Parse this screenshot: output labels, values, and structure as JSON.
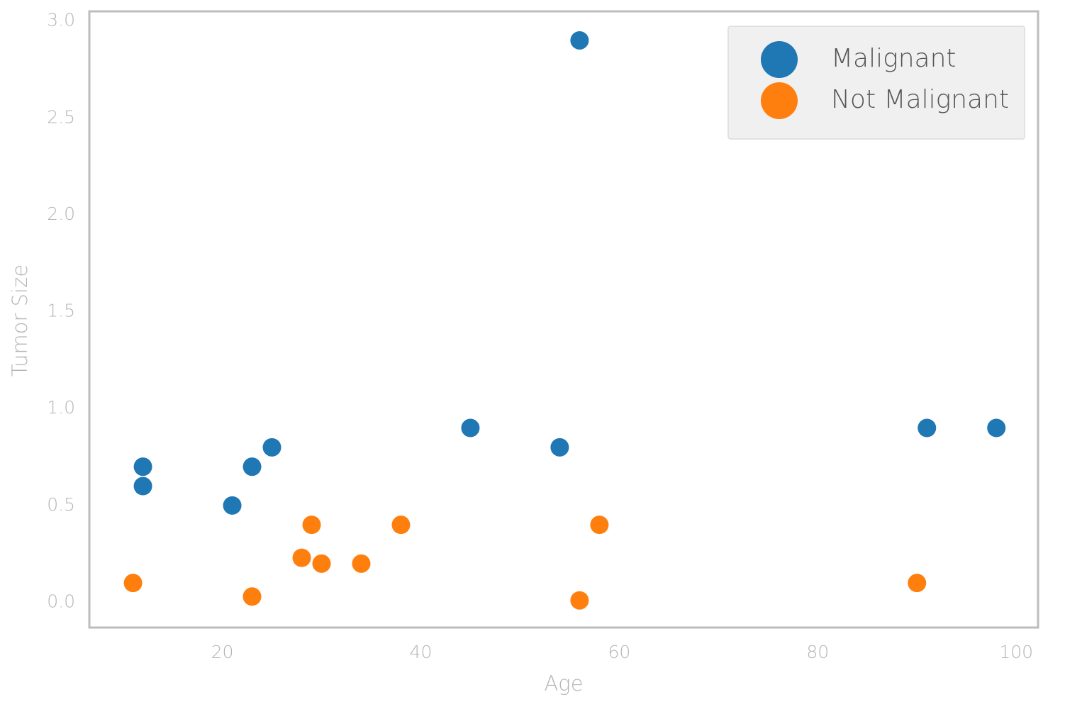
{
  "chart_data": {
    "type": "scatter",
    "xlabel": "Age",
    "ylabel": "Tumor Size",
    "xlim": [
      6.6,
      102.2
    ],
    "ylim": [
      -0.13,
      3.05
    ],
    "xticks": [
      20,
      40,
      60,
      80,
      100
    ],
    "yticks": [
      {
        "value": 0,
        "label": "0.0"
      },
      0.5,
      {
        "value": 1,
        "label": "1.0"
      },
      1.5,
      {
        "value": 2,
        "label": "2.0"
      },
      2.5,
      {
        "value": 3,
        "label": "3.0"
      }
    ],
    "legend": "upper right",
    "series": [
      {
        "name": "Malignant",
        "color": "#1f77b4",
        "x": [
          56,
          12,
          12,
          21,
          23,
          25,
          45,
          54,
          91,
          98
        ],
        "values": [
          2.9,
          0.7,
          0.6,
          0.5,
          0.7,
          0.8,
          0.9,
          0.8,
          0.9,
          0.9
        ]
      },
      {
        "name": "Not Malignant",
        "color": "#ff7f0e",
        "x": [
          11,
          23,
          28,
          29,
          30,
          34,
          38,
          56,
          58,
          90
        ],
        "values": [
          0.1,
          0.03,
          0.23,
          0.4,
          0.2,
          0.2,
          0.4,
          0.01,
          0.4,
          0.1
        ]
      }
    ]
  }
}
